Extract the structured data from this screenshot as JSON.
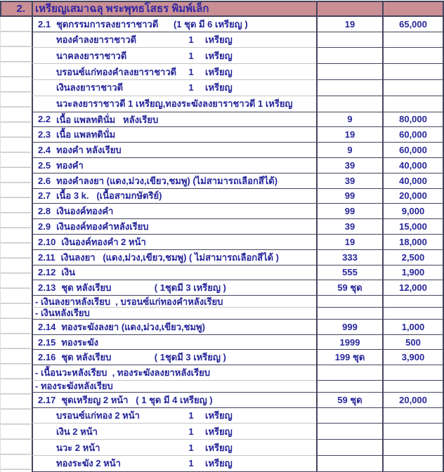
{
  "colors": {
    "header_background": "#ca8f94",
    "body_text": "#26269b",
    "header_text": "#3227a3",
    "grid_border": "#45455f",
    "light_gridline": "#c6c6c6"
  },
  "header": {
    "no": "2.",
    "title": "เหรียญเสมาฉลุ พระพุทธโสธร พิมพ์เล็ก"
  },
  "table": {
    "rows": [
      {
        "type": "item",
        "no": "2.1",
        "label": "ชุดกรรมการลงยาราชาวดี      (1 ชุด มี 6 เหรียญ )",
        "qty": "19",
        "price": "65,000"
      },
      {
        "type": "sub",
        "label": "ทองคำลงยาราชาวดี",
        "count": "1",
        "unit": "เหรียญ"
      },
      {
        "type": "sub",
        "label": "นาคลงยาราชาวดี",
        "count": "1",
        "unit": "เหรียญ"
      },
      {
        "type": "sub",
        "label": "บรอนซ์แก่ทองคำลงยาราชาวดี",
        "count": "1",
        "unit": "เหรียญ"
      },
      {
        "type": "sub",
        "label": "เงินลงยาราชาวดี",
        "count": "1",
        "unit": "เหรียญ"
      },
      {
        "type": "sub",
        "label": "นวะลงยาราชาวดี 1 เหรียญ,ทองระฆังลงยาราชาวดี 1 เหรียญ"
      },
      {
        "type": "item",
        "no": "2.2",
        "label": "เนื้อ แพลทตินั่ม   หลังเรียบ",
        "qty": "9",
        "price": "80,000"
      },
      {
        "type": "item",
        "no": "2.3",
        "label": "เนื้อ แพลทตินั่ม",
        "qty": "19",
        "price": "60,000"
      },
      {
        "type": "item",
        "no": "2.4",
        "label": "ทองคำ หลังเรียบ",
        "qty": "9",
        "price": "60,000"
      },
      {
        "type": "item",
        "no": "2.5",
        "label": "ทองคำ",
        "qty": "39",
        "price": "40,000"
      },
      {
        "type": "item",
        "no": "2.6",
        "label": "ทองคำลงยา (แดง,ม่วง,เขียว,ชมพู) (ไม่สามารถเลือกสีได้)",
        "qty": "39",
        "price": "40,000"
      },
      {
        "type": "item",
        "no": "2.7",
        "label": "เนื้อ 3 k.   (เนื้อสามกษัตริย์)",
        "qty": "99",
        "price": "20,000"
      },
      {
        "type": "item",
        "no": "2.8",
        "label": "เงินองค์ทองคำ",
        "qty": "99",
        "price": "9,000"
      },
      {
        "type": "item",
        "no": "2.9",
        "label": "เงินองค์ทองคำหลังเรียบ",
        "qty": "39",
        "price": "15,000"
      },
      {
        "type": "item",
        "no": "2.10",
        "label": "เงินองค์ทองคำ 2 หน้า",
        "qty": "19",
        "price": "18,000"
      },
      {
        "type": "item",
        "no": "2.11",
        "label": "เงินลงยา   (แดง,ม่วง,เขียว,ชมพู) ( ไม่สามารถเลือกสีได้ )",
        "qty": "333",
        "price": "2,500"
      },
      {
        "type": "item",
        "no": "2.12",
        "label": "เงิน",
        "qty": "555",
        "price": "1,900"
      },
      {
        "type": "item",
        "no": "2.13",
        "label": "ชุด หลังเรียบ                 ( 1ชุดมี 3 เหรียญ )",
        "qty": "59 ชุด",
        "price": "12,000"
      },
      {
        "type": "dash",
        "label": "- เงินลงยาหลังเรียบ  , บรอนซ์แก่ทองคำหลังเรียบ"
      },
      {
        "type": "dash",
        "label": "- เงินหลังเรียบ"
      },
      {
        "type": "item",
        "no": "2.14",
        "label": "ทองระฆังลงยา (แดง,ม่วง,เขียว,ชมพู)",
        "qty": "999",
        "price": "1,000"
      },
      {
        "type": "item",
        "no": "2.15",
        "label": "ทองระฆัง",
        "qty": "1999",
        "price": "500"
      },
      {
        "type": "item",
        "no": "2.16",
        "label": "ชุด หลังเรียบ                 ( 1ชุดมี 3 เหรียญ )",
        "qty": "199 ชุด",
        "price": "3,900"
      },
      {
        "type": "dashtall",
        "label": "- เนื้อนวะหลังเรียบ  , ทองระฆังลงยาหลังเรียบ"
      },
      {
        "type": "dash",
        "label": "- ทองระฆังหลังเรียบ"
      },
      {
        "type": "item",
        "no": "2.17",
        "label": "ชุดเหรียญ 2 หน้า   ( 1 ชุด มี 4 เหรียญ )",
        "qty": "59 ชุด",
        "price": "20,000"
      },
      {
        "type": "sub",
        "label": "บรอนซ์แก่ทอง 2 หน้า",
        "count": "1",
        "unit": "เหรียญ"
      },
      {
        "type": "sub",
        "label": "เงิน 2 หน้า",
        "count": "1",
        "unit": "เหรียญ"
      },
      {
        "type": "sub",
        "label": "นวะ 2 หน้า",
        "count": "1",
        "unit": "เหรียญ"
      },
      {
        "type": "sub",
        "label": "ทองระฆัง 2 หน้า",
        "count": "1",
        "unit": "เหรียญ"
      }
    ]
  }
}
